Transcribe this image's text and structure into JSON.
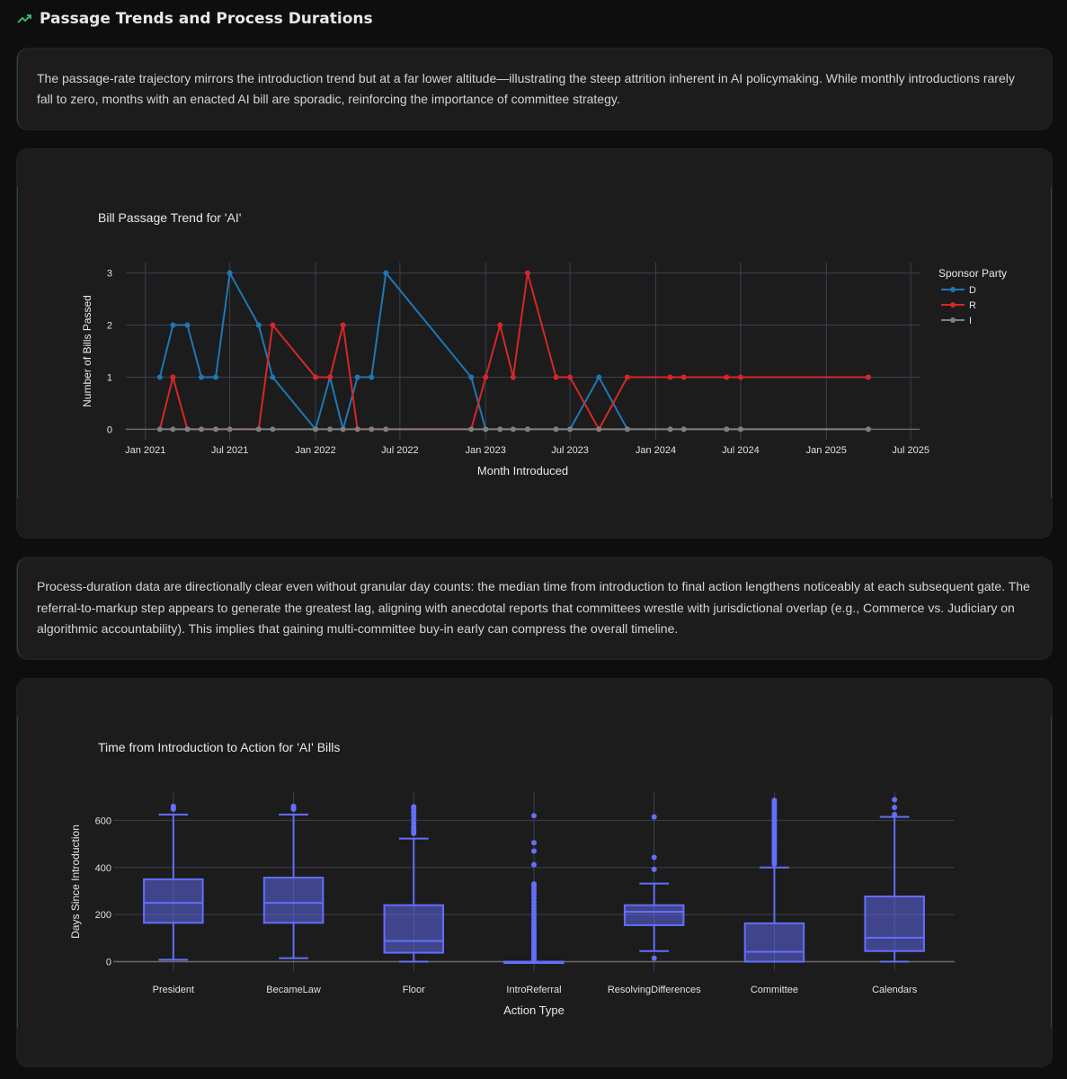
{
  "section": {
    "title": "Passage Trends and Process Durations",
    "icon": "trending-up-icon",
    "accent_color": "#36c07e"
  },
  "paragraphs": {
    "p1": "The passage-rate trajectory mirrors the introduction trend but at a far lower altitude—illustrating the steep attrition inherent in AI policymaking. While monthly introductions rarely fall to zero, months with an enacted AI bill are sporadic, reinforcing the importance of committee strategy.",
    "p2": "Process-duration data are directionally clear even without granular day counts: the median time from introduction to final action lengthens noticeably at each subsequent gate. The referral-to-markup step appears to generate the greatest lag, aligning with anecdotal reports that committees wrestle with jurisdictional overlap (e.g., Commerce vs. Judiciary on algorithmic accountability). This implies that gaining multi-committee buy-in early can compress the overall timeline."
  },
  "chart_data": [
    {
      "type": "line",
      "title": "Bill Passage Trend for 'AI'",
      "xlabel": "Month Introduced",
      "ylabel": "Number of Bills Passed",
      "x_ticks": [
        "Jan 2021",
        "Jul 2021",
        "Jan 2022",
        "Jul 2022",
        "Jan 2023",
        "Jul 2023",
        "Jan 2024",
        "Jul 2024",
        "Jan 2025",
        "Jul 2025"
      ],
      "y_ticks": [
        0,
        1,
        2,
        3
      ],
      "xlim": [
        "2020-11-20",
        "2025-07-20"
      ],
      "ylim": [
        -0.2,
        3.2
      ],
      "grid": true,
      "legend": {
        "title": "Sponsor Party",
        "position": "top-right"
      },
      "series": [
        {
          "name": "D",
          "color": "#1f77b4",
          "points": [
            [
              "2021-02",
              1
            ],
            [
              "2021-03",
              2
            ],
            [
              "2021-04",
              2
            ],
            [
              "2021-05",
              1
            ],
            [
              "2021-06",
              1
            ],
            [
              "2021-07",
              3
            ],
            [
              "2021-09",
              2
            ],
            [
              "2021-10",
              1
            ],
            [
              "2022-01",
              0
            ],
            [
              "2022-02",
              1
            ],
            [
              "2022-03",
              0
            ],
            [
              "2022-04",
              1
            ],
            [
              "2022-05",
              1
            ],
            [
              "2022-06",
              3
            ],
            [
              "2022-12",
              1
            ],
            [
              "2023-01",
              0
            ],
            [
              "2023-02",
              0
            ],
            [
              "2023-03",
              0
            ],
            [
              "2023-04",
              0
            ],
            [
              "2023-06",
              0
            ],
            [
              "2023-07",
              0
            ],
            [
              "2023-09",
              1
            ],
            [
              "2023-11",
              0
            ],
            [
              "2024-02",
              0
            ],
            [
              "2024-03",
              0
            ],
            [
              "2024-06",
              0
            ],
            [
              "2024-07",
              0
            ],
            [
              "2025-04",
              0
            ]
          ]
        },
        {
          "name": "R",
          "color": "#d62728",
          "points": [
            [
              "2021-02",
              0
            ],
            [
              "2021-03",
              1
            ],
            [
              "2021-04",
              0
            ],
            [
              "2021-05",
              0
            ],
            [
              "2021-06",
              0
            ],
            [
              "2021-07",
              0
            ],
            [
              "2021-09",
              0
            ],
            [
              "2021-10",
              2
            ],
            [
              "2022-01",
              1
            ],
            [
              "2022-02",
              1
            ],
            [
              "2022-03",
              2
            ],
            [
              "2022-04",
              0
            ],
            [
              "2022-05",
              0
            ],
            [
              "2022-06",
              0
            ],
            [
              "2022-12",
              0
            ],
            [
              "2023-01",
              1
            ],
            [
              "2023-02",
              2
            ],
            [
              "2023-03",
              1
            ],
            [
              "2023-04",
              3
            ],
            [
              "2023-06",
              1
            ],
            [
              "2023-07",
              1
            ],
            [
              "2023-09",
              0
            ],
            [
              "2023-11",
              1
            ],
            [
              "2024-02",
              1
            ],
            [
              "2024-03",
              1
            ],
            [
              "2024-06",
              1
            ],
            [
              "2024-07",
              1
            ],
            [
              "2025-04",
              1
            ]
          ]
        },
        {
          "name": "I",
          "color": "#7f7f7f",
          "points": [
            [
              "2021-02",
              0
            ],
            [
              "2021-03",
              0
            ],
            [
              "2021-04",
              0
            ],
            [
              "2021-05",
              0
            ],
            [
              "2021-06",
              0
            ],
            [
              "2021-07",
              0
            ],
            [
              "2021-09",
              0
            ],
            [
              "2021-10",
              0
            ],
            [
              "2022-01",
              0
            ],
            [
              "2022-02",
              0
            ],
            [
              "2022-03",
              0
            ],
            [
              "2022-04",
              0
            ],
            [
              "2022-05",
              0
            ],
            [
              "2022-06",
              0
            ],
            [
              "2022-12",
              0
            ],
            [
              "2023-01",
              0
            ],
            [
              "2023-02",
              0
            ],
            [
              "2023-03",
              0
            ],
            [
              "2023-04",
              0
            ],
            [
              "2023-06",
              0
            ],
            [
              "2023-07",
              0
            ],
            [
              "2023-09",
              0
            ],
            [
              "2023-11",
              0
            ],
            [
              "2024-02",
              0
            ],
            [
              "2024-03",
              0
            ],
            [
              "2024-06",
              0
            ],
            [
              "2024-07",
              0
            ],
            [
              "2025-04",
              0
            ]
          ]
        }
      ]
    },
    {
      "type": "box",
      "title": "Time from Introduction to Action for 'AI' Bills",
      "xlabel": "Action Type",
      "ylabel": "Days Since Introduction",
      "y_ticks": [
        0,
        200,
        400,
        600
      ],
      "ylim": [
        -40,
        720
      ],
      "grid": true,
      "color": "#636efa",
      "boxes": [
        {
          "category": "President",
          "min": 8,
          "q1": 165,
          "median": 250,
          "q3": 350,
          "max": 625,
          "outliers": [
            648,
            655,
            660
          ]
        },
        {
          "category": "BecameLaw",
          "min": 15,
          "q1": 165,
          "median": 250,
          "q3": 357,
          "max": 625,
          "outliers": [
            648,
            655,
            660
          ]
        },
        {
          "category": "Floor",
          "min": 0,
          "q1": 38,
          "median": 88,
          "q3": 240,
          "max": 523,
          "outliers": [
            545,
            555,
            565,
            575,
            590,
            605,
            620,
            635,
            648,
            658
          ]
        },
        {
          "category": "IntroReferral",
          "min": 0,
          "q1": 0,
          "median": 0,
          "q3": 0,
          "max": 0,
          "outliers": [
            8,
            16,
            25,
            34,
            43,
            52,
            61,
            70,
            80,
            90,
            100,
            110,
            120,
            130,
            140,
            150,
            162,
            175,
            188,
            200,
            212,
            225,
            240,
            255,
            270,
            282,
            295,
            308,
            320,
            330,
            412,
            470,
            505,
            620
          ]
        },
        {
          "category": "ResolvingDifferences",
          "min": 45,
          "q1": 155,
          "median": 212,
          "q3": 240,
          "max": 332,
          "outliers": [
            15,
            392,
            443,
            615
          ]
        },
        {
          "category": "Committee",
          "min": 0,
          "q1": 0,
          "median": 42,
          "q3": 163,
          "max": 400,
          "outliers": [
            415,
            425,
            435,
            445,
            455,
            465,
            475,
            485,
            495,
            505,
            515,
            525,
            535,
            545,
            555,
            565,
            575,
            585,
            595,
            605,
            615,
            625,
            635,
            645,
            655,
            665,
            675,
            685
          ]
        },
        {
          "category": "Calendars",
          "min": 0,
          "q1": 45,
          "median": 102,
          "q3": 277,
          "max": 615,
          "outliers": [
            625,
            655,
            688
          ]
        }
      ]
    }
  ]
}
